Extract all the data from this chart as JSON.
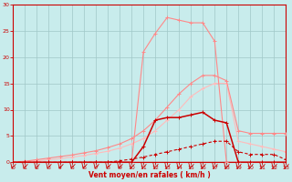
{
  "x": [
    0,
    1,
    2,
    3,
    4,
    5,
    6,
    7,
    8,
    9,
    10,
    11,
    12,
    13,
    14,
    15,
    16,
    17,
    18,
    19,
    20,
    21,
    22,
    23
  ],
  "line_dark_peak": [
    0,
    0,
    0,
    0,
    0,
    0,
    0,
    0,
    0,
    0,
    0,
    3,
    8,
    8.5,
    8.5,
    9,
    9.5,
    8,
    7.5,
    0,
    0,
    0,
    0,
    0
  ],
  "line_dark_flat": [
    0,
    0,
    0,
    0,
    0,
    0,
    0,
    0,
    0,
    0.3,
    0.6,
    1.0,
    1.5,
    2.0,
    2.5,
    3.0,
    3.5,
    4.0,
    4.0,
    2.0,
    1.5,
    1.5,
    1.5,
    0.5
  ],
  "line_pink_spike": [
    0,
    0,
    0,
    0,
    0,
    0,
    0,
    0,
    0,
    0,
    0,
    21,
    24.5,
    27.5,
    27,
    26.5,
    26.5,
    23,
    0,
    0,
    0,
    0,
    0,
    0
  ],
  "line_pink_high": [
    0,
    0.2,
    0.5,
    0.8,
    1.1,
    1.4,
    1.8,
    2.2,
    2.8,
    3.5,
    4.5,
    6.0,
    8.0,
    10.5,
    13.0,
    15.0,
    16.5,
    16.5,
    15.5,
    6.0,
    5.5,
    5.5,
    5.5,
    5.5
  ],
  "line_pink_low": [
    0,
    0.1,
    0.3,
    0.5,
    0.7,
    1.0,
    1.3,
    1.7,
    2.1,
    2.7,
    3.5,
    4.5,
    6.0,
    8.0,
    10.0,
    12.5,
    14.0,
    15.0,
    15.0,
    4.0,
    3.5,
    3.0,
    2.5,
    2.0
  ],
  "bg_color": "#c8ecec",
  "grid_color": "#a0c8c8",
  "dark_red": "#cc0000",
  "medium_pink": "#ff8888",
  "light_pink": "#ffbbbb",
  "xlabel": "Vent moyen/en rafales ( km/h )",
  "xlim": [
    0,
    23
  ],
  "ylim": [
    0,
    30
  ],
  "yticks": [
    0,
    5,
    10,
    15,
    20,
    25,
    30
  ],
  "xticks": [
    0,
    1,
    2,
    3,
    4,
    5,
    6,
    7,
    8,
    9,
    10,
    11,
    12,
    13,
    14,
    15,
    16,
    17,
    18,
    19,
    20,
    21,
    22,
    23
  ]
}
